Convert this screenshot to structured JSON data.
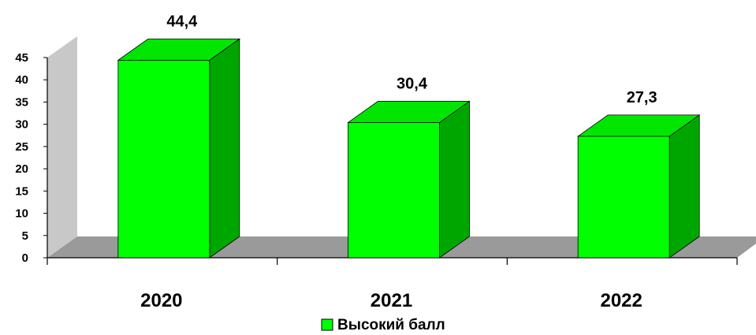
{
  "chart_data": {
    "type": "bar",
    "categories": [
      "2020",
      "2021",
      "2022"
    ],
    "series": [
      {
        "name": "Высокий балл",
        "values": [
          44.4,
          30.4,
          27.3
        ]
      }
    ],
    "value_labels": [
      "44,4",
      "30,4",
      "27,3"
    ],
    "y_ticks": [
      "0",
      "5",
      "10",
      "15",
      "20",
      "25",
      "30",
      "35",
      "40",
      "45"
    ],
    "ylim": [
      0,
      45
    ],
    "grid": false,
    "legend_position": "bottom",
    "style": "3d-column",
    "colors": {
      "bar_front": "#00ff00",
      "bar_side": "#00a600",
      "bar_top": "#00e600",
      "floor": "#9a9a9a",
      "wall": "#c8c8c8",
      "legend_swatch": "#00ff00"
    }
  }
}
